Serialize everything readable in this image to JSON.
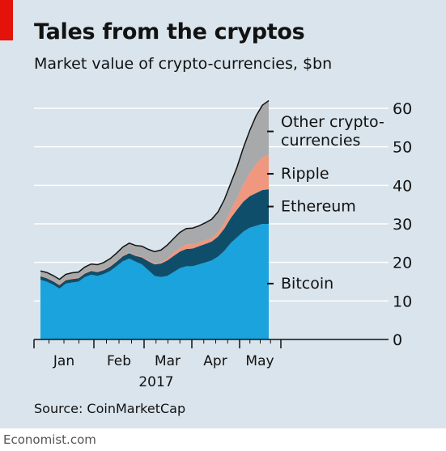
{
  "header": {
    "title": "Tales from the cryptos",
    "subtitle": "Market value of crypto-currencies, $bn"
  },
  "footer": {
    "source": "Source: CoinMarketCap",
    "brand": "Economist.com"
  },
  "colors": {
    "background": "#d9e4ec",
    "accent": "#e3120b",
    "bitcoin": "#1aa3dc",
    "ethereum": "#0f4e6a",
    "ripple": "#f0977f",
    "other": "#a7a9ab",
    "gridline": "#ffffff"
  },
  "chart_data": {
    "type": "area",
    "stacked": true,
    "title": "Tales from the cryptos",
    "subtitle": "Market value of crypto-currencies, $bn",
    "xlabel": "",
    "ylabel": "",
    "x_tick_labels": [
      "Jan",
      "Feb",
      "Mar",
      "Apr",
      "May"
    ],
    "x_year_label": "2017",
    "y_ticks": [
      0,
      10,
      20,
      30,
      40,
      50,
      60
    ],
    "ylim": [
      0,
      60
    ],
    "xlim": [
      0,
      144
    ],
    "grid": true,
    "y_axis_position": "right",
    "legend": "inline-right",
    "x": [
      0,
      4,
      8,
      12,
      16,
      20,
      24,
      28,
      32,
      36,
      40,
      44,
      48,
      52,
      56,
      60,
      64,
      68,
      72,
      76,
      80,
      84,
      88,
      92,
      96,
      100,
      104,
      108,
      112,
      116,
      120,
      124,
      128,
      132,
      136,
      140,
      144
    ],
    "series": [
      {
        "name": "Bitcoin",
        "values": [
          15.5,
          15.0,
          14.2,
          13.2,
          14.5,
          14.8,
          15.0,
          16.2,
          16.8,
          16.5,
          17.0,
          17.8,
          19.0,
          20.3,
          21.0,
          20.2,
          19.5,
          18.0,
          16.5,
          16.2,
          16.5,
          17.5,
          18.5,
          19.0,
          19.0,
          19.5,
          20.0,
          20.5,
          21.5,
          23.0,
          25.0,
          26.5,
          28.0,
          29.0,
          29.5,
          30.0,
          30.0
        ]
      },
      {
        "name": "Ethereum",
        "values": [
          0.9,
          0.9,
          0.9,
          0.9,
          0.9,
          0.9,
          0.9,
          0.9,
          1.0,
          1.0,
          1.0,
          1.1,
          1.2,
          1.3,
          1.4,
          1.5,
          1.8,
          2.3,
          3.0,
          3.5,
          4.0,
          4.2,
          4.3,
          4.5,
          4.6,
          4.7,
          4.8,
          4.9,
          5.2,
          5.8,
          6.5,
          7.2,
          7.8,
          8.2,
          8.5,
          8.8,
          9.0
        ]
      },
      {
        "name": "Ripple",
        "values": [
          0.2,
          0.2,
          0.2,
          0.2,
          0.2,
          0.2,
          0.2,
          0.2,
          0.2,
          0.2,
          0.2,
          0.2,
          0.2,
          0.2,
          0.2,
          0.2,
          0.2,
          0.3,
          0.3,
          0.3,
          0.5,
          0.8,
          1.0,
          1.2,
          1.1,
          1.0,
          1.0,
          1.0,
          1.2,
          1.5,
          2.0,
          3.0,
          4.5,
          6.0,
          7.5,
          8.5,
          9.0
        ]
      },
      {
        "name": "Other crypto-currencies",
        "values": [
          1.2,
          1.3,
          1.3,
          1.3,
          1.3,
          1.4,
          1.4,
          1.5,
          1.6,
          1.7,
          1.8,
          1.9,
          2.0,
          2.2,
          2.4,
          2.5,
          2.7,
          2.8,
          3.0,
          3.2,
          3.5,
          3.7,
          4.0,
          4.1,
          4.2,
          4.3,
          4.5,
          4.8,
          5.2,
          6.0,
          7.0,
          8.0,
          9.5,
          11.0,
          12.5,
          13.5,
          14.0
        ]
      }
    ],
    "labels": [
      {
        "series": "Other crypto-currencies",
        "lines": [
          "Other crypto-",
          "currencies"
        ],
        "y": 54
      },
      {
        "series": "Ripple",
        "lines": [
          "Ripple"
        ],
        "y": 43
      },
      {
        "series": "Ethereum",
        "lines": [
          "Ethereum"
        ],
        "y": 34.5
      },
      {
        "series": "Bitcoin",
        "lines": [
          "Bitcoin"
        ],
        "y": 14.5
      }
    ]
  }
}
